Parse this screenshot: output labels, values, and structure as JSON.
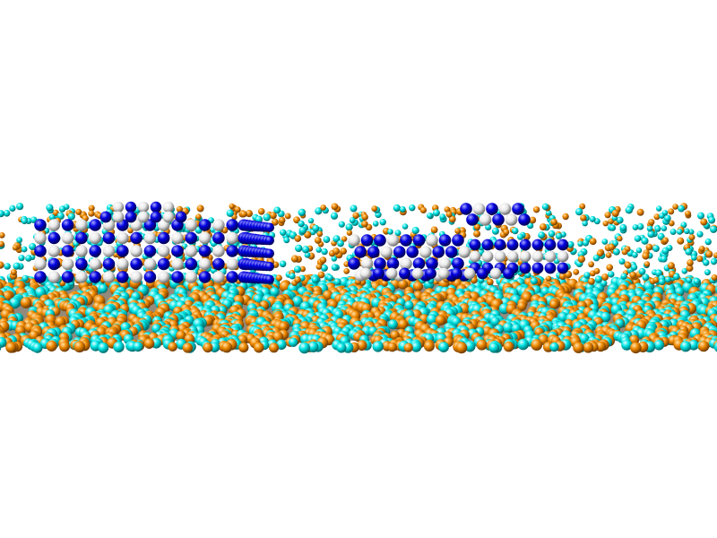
{
  "scene": {
    "background": "#ffffff",
    "atom_colors": {
      "species_a": "#00e5e5",
      "species_b": "#f08a00",
      "species_c": "#0000e0",
      "species_d": "#e8e8e8"
    },
    "regions": [
      {
        "name": "substrate",
        "species": [
          "species_a",
          "species_b"
        ],
        "ordering": "amorphous"
      },
      {
        "name": "upper-matrix",
        "species": [
          "species_a",
          "species_b"
        ],
        "ordering": "amorphous-sparse"
      },
      {
        "name": "cluster-left",
        "species": [
          "species_c",
          "species_d"
        ],
        "ordering": "crystalline"
      },
      {
        "name": "cluster-right",
        "species": [
          "species_c",
          "species_d"
        ],
        "ordering": "crystalline"
      }
    ]
  }
}
